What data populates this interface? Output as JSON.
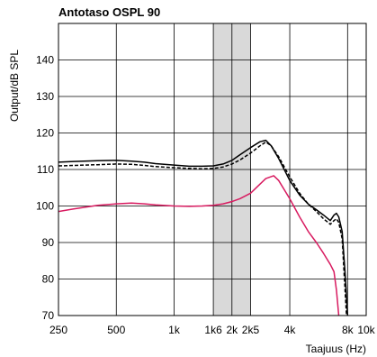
{
  "chart_data": {
    "type": "line",
    "title": "Antotaso OSPL 90",
    "xlabel": "Taajuus (Hz)",
    "ylabel": "Output/dB SPL",
    "xscale": "log",
    "xlim": [
      250,
      10000
    ],
    "ylim": [
      70,
      150
    ],
    "yticks": [
      70,
      80,
      90,
      100,
      110,
      120,
      130,
      140
    ],
    "xticks": [
      {
        "value": 250,
        "label": "250"
      },
      {
        "value": 500,
        "label": "500"
      },
      {
        "value": 1000,
        "label": "1k"
      },
      {
        "value": 1600,
        "label": "1k6"
      },
      {
        "value": 2000,
        "label": "2k"
      },
      {
        "value": 2500,
        "label": "2k5"
      },
      {
        "value": 4000,
        "label": "4k"
      },
      {
        "value": 8000,
        "label": "8k"
      },
      {
        "value": 10000,
        "label": "10k"
      }
    ],
    "grid": true,
    "shaded_band": {
      "x": [
        1600,
        2500
      ],
      "color": "#d9d9d9"
    },
    "series": [
      {
        "style": "solid",
        "color": "#000000",
        "points": [
          [
            250,
            112
          ],
          [
            300,
            112.2
          ],
          [
            400,
            112.4
          ],
          [
            500,
            112.5
          ],
          [
            600,
            112.3
          ],
          [
            700,
            112
          ],
          [
            800,
            111.6
          ],
          [
            1000,
            111.2
          ],
          [
            1200,
            110.9
          ],
          [
            1400,
            110.9
          ],
          [
            1600,
            111
          ],
          [
            1800,
            111.5
          ],
          [
            2000,
            112.5
          ],
          [
            2200,
            114
          ],
          [
            2500,
            116
          ],
          [
            2800,
            117.6
          ],
          [
            3000,
            118
          ],
          [
            3200,
            116.5
          ],
          [
            3500,
            113
          ],
          [
            4000,
            107
          ],
          [
            4500,
            103
          ],
          [
            5000,
            100.5
          ],
          [
            5500,
            99
          ],
          [
            6000,
            97.5
          ],
          [
            6500,
            96
          ],
          [
            6800,
            97.5
          ],
          [
            7000,
            98
          ],
          [
            7200,
            97
          ],
          [
            7500,
            93
          ],
          [
            7800,
            80
          ],
          [
            8000,
            70
          ]
        ]
      },
      {
        "style": "dashed",
        "color": "#000000",
        "points": [
          [
            250,
            111
          ],
          [
            300,
            111.1
          ],
          [
            400,
            111.3
          ],
          [
            500,
            111.5
          ],
          [
            600,
            111.4
          ],
          [
            700,
            111.1
          ],
          [
            800,
            110.8
          ],
          [
            1000,
            110.5
          ],
          [
            1200,
            110.3
          ],
          [
            1400,
            110.2
          ],
          [
            1600,
            110.3
          ],
          [
            1800,
            110.7
          ],
          [
            2000,
            111.5
          ],
          [
            2200,
            112.6
          ],
          [
            2500,
            114.5
          ],
          [
            2800,
            116.5
          ],
          [
            3000,
            117.5
          ],
          [
            3200,
            116.5
          ],
          [
            3500,
            113.5
          ],
          [
            4000,
            108
          ],
          [
            4500,
            103.5
          ],
          [
            5000,
            100.5
          ],
          [
            5500,
            98.5
          ],
          [
            6000,
            96.5
          ],
          [
            6500,
            95
          ],
          [
            6800,
            96
          ],
          [
            7000,
            96.5
          ],
          [
            7200,
            95.5
          ],
          [
            7500,
            91
          ],
          [
            7700,
            80
          ],
          [
            7900,
            70
          ]
        ]
      },
      {
        "style": "solid",
        "color": "#d81b60",
        "points": [
          [
            250,
            98.5
          ],
          [
            300,
            99.2
          ],
          [
            400,
            100.2
          ],
          [
            500,
            100.6
          ],
          [
            600,
            100.8
          ],
          [
            700,
            100.6
          ],
          [
            800,
            100.3
          ],
          [
            1000,
            100
          ],
          [
            1200,
            99.9
          ],
          [
            1400,
            100
          ],
          [
            1600,
            100.2
          ],
          [
            1800,
            100.6
          ],
          [
            2000,
            101.2
          ],
          [
            2200,
            102
          ],
          [
            2500,
            103.5
          ],
          [
            2800,
            106
          ],
          [
            3000,
            107.5
          ],
          [
            3300,
            108.3
          ],
          [
            3500,
            107
          ],
          [
            4000,
            102
          ],
          [
            4500,
            97
          ],
          [
            5000,
            93
          ],
          [
            5500,
            90
          ],
          [
            6000,
            87
          ],
          [
            6500,
            84
          ],
          [
            6800,
            82
          ],
          [
            7000,
            77
          ],
          [
            7200,
            70
          ]
        ]
      }
    ]
  }
}
